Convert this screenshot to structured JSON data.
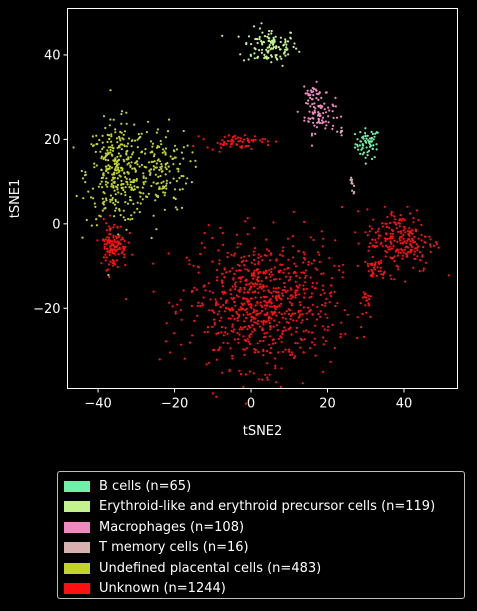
{
  "chart_data": {
    "type": "scatter",
    "title": "",
    "xlabel": "tSNE2",
    "ylabel": "tSNE1",
    "xlim": [
      -48,
      54
    ],
    "ylim": [
      -39,
      51
    ],
    "xticks": [
      -40,
      -20,
      0,
      20,
      40
    ],
    "yticks": [
      -20,
      0,
      20,
      40
    ],
    "xtick_labels": [
      "−40",
      "−20",
      "0",
      "20",
      "40"
    ],
    "ytick_labels": [
      "−20",
      "0",
      "20",
      "40"
    ],
    "grid": false,
    "legend_position": "below",
    "series": [
      {
        "name": "B cells (n=65)",
        "color": "#6ef0a6",
        "n": 65,
        "clusters": [
          {
            "cx": 30.5,
            "cy": 19,
            "sx": 1.6,
            "sy": 1.8,
            "n": 65
          }
        ]
      },
      {
        "name": "Erythroid-like and erythroid precursor cells (n=119)",
        "color": "#c4f28c",
        "n": 119,
        "clusters": [
          {
            "cx": 5,
            "cy": 42,
            "sx": 3.6,
            "sy": 2.2,
            "n": 119
          }
        ]
      },
      {
        "name": "Macrophages (n=108)",
        "color": "#ef8ac0",
        "n": 108,
        "clusters": [
          {
            "cx": 18,
            "cy": 26,
            "sx": 2.0,
            "sy": 2.2,
            "n": 80
          },
          {
            "cx": 16,
            "cy": 31,
            "sx": 1.2,
            "sy": 1.2,
            "n": 28
          }
        ]
      },
      {
        "name": "T memory cells (n=16)",
        "color": "#d8b0b0",
        "n": 16,
        "clusters": [
          {
            "cx": 26.5,
            "cy": 9,
            "sx": 0.5,
            "sy": 1.0,
            "n": 10
          },
          {
            "cx": 23.5,
            "cy": 22,
            "sx": 0.6,
            "sy": 0.6,
            "n": 6
          }
        ]
      },
      {
        "name": "Undefined placental cells (n=483)",
        "color": "#c3d427",
        "n": 483,
        "clusters": [
          {
            "cx": -35,
            "cy": 12,
            "sx": 4.0,
            "sy": 6.0,
            "n": 330
          },
          {
            "cx": -24,
            "cy": 13,
            "sx": 4.0,
            "sy": 5.0,
            "n": 153
          }
        ]
      },
      {
        "name": "Unknown (n=1244)",
        "color": "#ff1010",
        "n": 1244,
        "clusters": [
          {
            "cx": 3,
            "cy": -19,
            "sx": 9.5,
            "sy": 7.5,
            "n": 790
          },
          {
            "cx": 39,
            "cy": -4,
            "sx": 4.5,
            "sy": 3.8,
            "n": 230
          },
          {
            "cx": -36,
            "cy": -5,
            "sx": 1.8,
            "sy": 2.8,
            "n": 120
          },
          {
            "cx": -4,
            "cy": 19.5,
            "sx": 4.0,
            "sy": 0.8,
            "n": 64
          },
          {
            "cx": 33,
            "cy": -11,
            "sx": 1.4,
            "sy": 1.2,
            "n": 25
          },
          {
            "cx": 30,
            "cy": -17.5,
            "sx": 0.7,
            "sy": 1.2,
            "n": 15
          }
        ]
      }
    ]
  }
}
